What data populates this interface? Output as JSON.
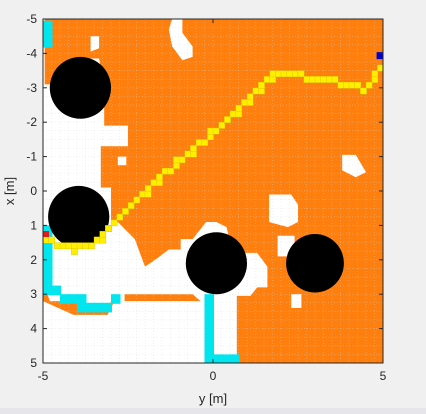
{
  "chart_data": {
    "type": "heatmap",
    "xlabel": "y [m]",
    "ylabel": "x [m]",
    "xlim": [
      -5,
      5
    ],
    "ylim": [
      -5,
      5
    ],
    "x_ticks": [
      -5,
      0,
      5
    ],
    "x_tick_labels": [
      "-5",
      "0",
      "5"
    ],
    "y_ticks": [
      -5,
      -4,
      -3,
      -2,
      -1,
      0,
      1,
      2,
      3,
      4,
      5
    ],
    "y_tick_labels": [
      "-5",
      "-4",
      "-3",
      "-2",
      "-1",
      "0",
      "1",
      "2",
      "3",
      "4",
      "5"
    ],
    "y_axis_reversed": true,
    "grid": true,
    "colors": {
      "explored": "#ff7f0e",
      "free": "#ffffff",
      "obstacle": "#000000",
      "frontier": "#00e5ee",
      "path": "#ffee00",
      "start": "#e31a1c",
      "goal": "#0000cc",
      "grid": "#d6d6d6"
    },
    "obstacles": [
      {
        "center": [
          -3.9,
          -3.0
        ],
        "radius": 0.9
      },
      {
        "center": [
          -3.95,
          0.75
        ],
        "radius": 0.9
      },
      {
        "center": [
          0.1,
          2.1
        ],
        "radius": 0.9
      },
      {
        "center": [
          3.0,
          2.1
        ],
        "radius": 0.85
      },
      {
        "center": [
          2.85,
          1.6
        ],
        "radius": 0.2
      }
    ],
    "path": [
      [
        -4.95,
        1.3
      ],
      [
        -4.7,
        1.5
      ],
      [
        -4.1,
        1.6
      ],
      [
        -3.5,
        1.4
      ],
      [
        -3.0,
        0.8
      ],
      [
        -1.5,
        -0.6
      ],
      [
        0.5,
        -2.3
      ],
      [
        1.5,
        -3.3
      ],
      [
        1.8,
        -3.55
      ],
      [
        2.3,
        -3.55
      ],
      [
        3.0,
        -3.3
      ],
      [
        4.1,
        -3.2
      ],
      [
        4.4,
        -3.0
      ],
      [
        4.8,
        -3.6
      ],
      [
        4.85,
        -3.9
      ]
    ],
    "start": [
      -5.0,
      1.25
    ],
    "goal": [
      4.9,
      -3.95
    ],
    "free_regions": [
      [
        [
          -5,
          -5
        ],
        [
          -4.95,
          -5
        ],
        [
          -4.95,
          -3.1
        ],
        [
          -3.2,
          -3.1
        ],
        [
          -3.2,
          -1.9
        ],
        [
          -2.5,
          -1.9
        ],
        [
          -2.5,
          -1.3
        ],
        [
          -3.3,
          -1.3
        ],
        [
          -3.3,
          -0.1
        ],
        [
          -3.0,
          -0.1
        ],
        [
          -3.0,
          0.9
        ],
        [
          -5.0,
          0.9
        ]
      ],
      [
        [
          -5.0,
          0.9
        ],
        [
          -2.8,
          0.9
        ],
        [
          -2.3,
          1.4
        ],
        [
          -2.0,
          2.2
        ],
        [
          -1.7,
          2.0
        ],
        [
          -1.3,
          1.7
        ],
        [
          -0.95,
          1.7
        ],
        [
          -0.95,
          1.4
        ],
        [
          -0.6,
          1.4
        ],
        [
          -0.2,
          0.9
        ],
        [
          0.1,
          0.9
        ],
        [
          0.4,
          1.05
        ],
        [
          0.5,
          1.5
        ],
        [
          0.95,
          1.8
        ],
        [
          1.3,
          1.8
        ],
        [
          1.6,
          2.2
        ],
        [
          1.6,
          2.8
        ],
        [
          1.3,
          2.8
        ],
        [
          1.1,
          3.05
        ],
        [
          0.7,
          3.05
        ],
        [
          0.7,
          5.0
        ],
        [
          -0.25,
          5.0
        ],
        [
          -0.25,
          3.3
        ],
        [
          -0.6,
          3.0
        ],
        [
          -1.3,
          3.0
        ],
        [
          -2.6,
          3.0
        ],
        [
          -2.6,
          3.2
        ],
        [
          -3.0,
          3.2
        ],
        [
          -3.1,
          3.5
        ],
        [
          -4.0,
          3.5
        ],
        [
          -4.0,
          3.2
        ],
        [
          -4.8,
          3.2
        ],
        [
          -4.9,
          2.9
        ],
        [
          -5.0,
          2.9
        ]
      ],
      [
        [
          -5.0,
          3.2
        ],
        [
          -4.1,
          3.6
        ],
        [
          -3.1,
          3.6
        ],
        [
          -2.9,
          3.2
        ],
        [
          -0.25,
          3.2
        ],
        [
          -0.25,
          5.0
        ],
        [
          -5.0,
          5.0
        ]
      ],
      [
        [
          -1.2,
          -5.0
        ],
        [
          -0.9,
          -5.0
        ],
        [
          -0.9,
          -4.6
        ],
        [
          -0.6,
          -4.2
        ],
        [
          -0.6,
          -3.9
        ],
        [
          -0.9,
          -3.8
        ],
        [
          -1.2,
          -4.2
        ],
        [
          -1.3,
          -4.7
        ]
      ],
      [
        [
          -3.6,
          -4.5
        ],
        [
          -3.35,
          -4.5
        ],
        [
          -3.35,
          -4.15
        ],
        [
          -3.6,
          -4.05
        ]
      ],
      [
        [
          -3.7,
          -3.85
        ],
        [
          -3.35,
          -3.85
        ],
        [
          -3.3,
          -3.55
        ],
        [
          -3.55,
          -3.3
        ]
      ],
      [
        [
          1.65,
          0.1
        ],
        [
          2.3,
          0.1
        ],
        [
          2.5,
          0.4
        ],
        [
          2.5,
          0.9
        ],
        [
          2.2,
          1.05
        ],
        [
          1.65,
          0.9
        ]
      ],
      [
        [
          3.8,
          -1.05
        ],
        [
          4.2,
          -1.05
        ],
        [
          4.5,
          -0.55
        ],
        [
          4.2,
          -0.4
        ],
        [
          3.8,
          -0.6
        ]
      ],
      [
        [
          1.9,
          1.3
        ],
        [
          2.4,
          1.3
        ],
        [
          2.4,
          1.9
        ],
        [
          1.9,
          1.9
        ]
      ],
      [
        [
          2.3,
          3.0
        ],
        [
          2.6,
          3.0
        ],
        [
          2.6,
          3.4
        ],
        [
          2.3,
          3.4
        ]
      ],
      [
        [
          -2.8,
          -1.0
        ],
        [
          -2.55,
          -1.0
        ],
        [
          -2.55,
          -0.75
        ],
        [
          -2.8,
          -0.75
        ]
      ]
    ],
    "frontier_cells": [
      [
        -5.0,
        -4.95
      ],
      [
        -5.0,
        -4.7
      ],
      [
        -5.0,
        -4.45
      ],
      [
        -5.0,
        1.0
      ],
      [
        -5.0,
        1.25
      ],
      [
        -5.0,
        1.5
      ],
      [
        -5.0,
        1.75
      ],
      [
        -5.0,
        2.0
      ],
      [
        -5.0,
        2.25
      ],
      [
        -5.0,
        2.5
      ],
      [
        -5.0,
        2.75
      ],
      [
        -4.75,
        2.75
      ],
      [
        -4.5,
        3.0
      ],
      [
        -4.25,
        3.0
      ],
      [
        -4.0,
        3.0
      ],
      [
        -4.0,
        3.25
      ],
      [
        -3.75,
        3.25
      ],
      [
        -3.5,
        3.25
      ],
      [
        -3.25,
        3.25
      ],
      [
        -3.0,
        3.0
      ],
      [
        -0.25,
        3.0
      ],
      [
        -0.25,
        3.25
      ],
      [
        -0.25,
        3.5
      ],
      [
        -0.25,
        3.75
      ],
      [
        -0.25,
        4.0
      ],
      [
        -0.25,
        4.25
      ],
      [
        -0.25,
        4.5
      ],
      [
        -0.25,
        4.75
      ],
      [
        0.0,
        4.75
      ],
      [
        0.25,
        4.75
      ],
      [
        0.5,
        4.75
      ]
    ]
  }
}
